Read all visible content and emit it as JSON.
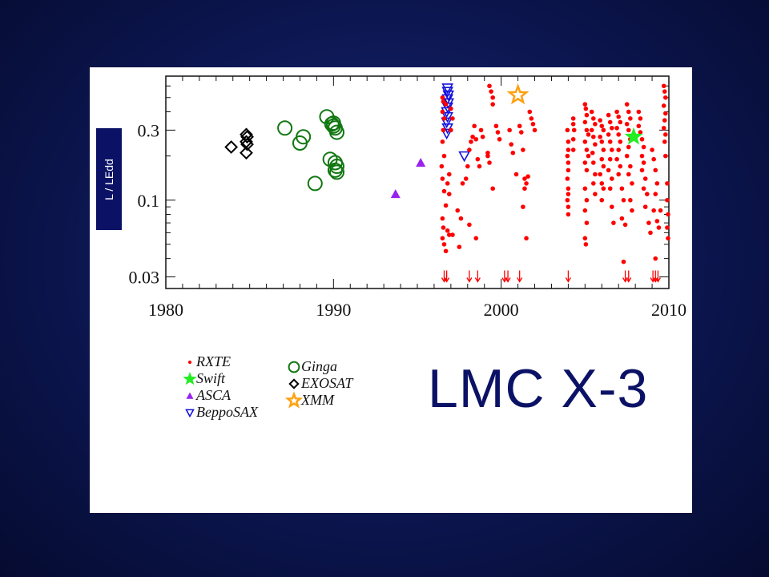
{
  "slide_title": "LMC X-3",
  "colors": {
    "rxte": "#ff0000",
    "swift": "#22ee22",
    "asca": "#9922ee",
    "beppo": "#1111dd",
    "ginga": "#117711",
    "exosat": "#000000",
    "xmm": "#ffa010",
    "navy": "#0b1266"
  },
  "chart_data": {
    "type": "scatter",
    "title": "LMC X-3",
    "xlabel": "",
    "ylabel": "L / LEdd",
    "xlim": [
      1980,
      2010
    ],
    "ylim": [
      0.025,
      0.7
    ],
    "yscale": "log",
    "x_ticks": [
      "1980",
      "1990",
      "2000",
      "2010"
    ],
    "y_ticks": [
      "0.03",
      "0.1",
      "0.3"
    ],
    "legend": [
      "RXTE",
      "Swift",
      "ASCA",
      "BeppoSAX",
      "Ginga",
      "EXOSAT",
      "XMM"
    ],
    "legend_placement": "bottom-left",
    "series": [
      {
        "name": "Ginga",
        "marker": "circle",
        "points": [
          [
            1987.1,
            0.31
          ],
          [
            1988.0,
            0.245
          ],
          [
            1988.2,
            0.27
          ],
          [
            1988.9,
            0.13
          ],
          [
            1989.6,
            0.37
          ],
          [
            1989.9,
            0.33
          ],
          [
            1990.0,
            0.32
          ],
          [
            1990.1,
            0.31
          ],
          [
            1990.2,
            0.29
          ],
          [
            1990.0,
            0.335
          ],
          [
            1989.8,
            0.19
          ],
          [
            1990.1,
            0.18
          ],
          [
            1990.2,
            0.17
          ],
          [
            1990.2,
            0.155
          ],
          [
            1990.1,
            0.16
          ]
        ]
      },
      {
        "name": "EXOSAT",
        "marker": "diamond",
        "points": [
          [
            1983.9,
            0.23
          ],
          [
            1984.8,
            0.28
          ],
          [
            1984.85,
            0.27
          ],
          [
            1984.8,
            0.25
          ],
          [
            1984.85,
            0.24
          ],
          [
            1984.8,
            0.21
          ]
        ]
      },
      {
        "name": "ASCA",
        "marker": "triangle-up",
        "points": [
          [
            1993.7,
            0.11
          ],
          [
            1995.2,
            0.18
          ]
        ]
      },
      {
        "name": "BeppoSAX",
        "marker": "triangle-down",
        "points": [
          [
            1996.8,
            0.58
          ],
          [
            1996.8,
            0.55
          ],
          [
            1996.85,
            0.52
          ],
          [
            1996.8,
            0.49
          ],
          [
            1996.85,
            0.46
          ],
          [
            1996.8,
            0.43
          ],
          [
            1996.75,
            0.4
          ],
          [
            1996.8,
            0.37
          ],
          [
            1996.75,
            0.34
          ],
          [
            1996.8,
            0.31
          ],
          [
            1996.75,
            0.285
          ],
          [
            1997.8,
            0.2
          ]
        ]
      },
      {
        "name": "XMM",
        "marker": "star-open",
        "points": [
          [
            2001.0,
            0.52
          ]
        ]
      },
      {
        "name": "RXTE",
        "marker": "dot",
        "points": [
          [
            1996.5,
            0.5
          ],
          [
            1996.55,
            0.47
          ],
          [
            1996.5,
            0.4
          ],
          [
            1996.6,
            0.36
          ],
          [
            1996.55,
            0.3
          ],
          [
            1996.5,
            0.25
          ],
          [
            1996.6,
            0.2
          ],
          [
            1996.45,
            0.17
          ],
          [
            1996.5,
            0.14
          ],
          [
            1996.6,
            0.115
          ],
          [
            1996.7,
            0.092
          ],
          [
            1996.5,
            0.075
          ],
          [
            1996.55,
            0.065
          ],
          [
            1996.5,
            0.055
          ],
          [
            1996.6,
            0.05
          ],
          [
            1996.7,
            0.045
          ],
          [
            1996.8,
            0.13
          ],
          [
            1996.9,
            0.11
          ],
          [
            1996.7,
            0.45
          ],
          [
            1997.0,
            0.42
          ],
          [
            1997.1,
            0.36
          ],
          [
            1997.0,
            0.3
          ],
          [
            1996.9,
            0.15
          ],
          [
            1996.8,
            0.062
          ],
          [
            1996.9,
            0.058
          ],
          [
            1997.1,
            0.058
          ],
          [
            1997.4,
            0.085
          ],
          [
            1997.6,
            0.075
          ],
          [
            1997.5,
            0.048
          ],
          [
            1997.7,
            0.13
          ],
          [
            1997.9,
            0.14
          ],
          [
            1998.0,
            0.17
          ],
          [
            1998.1,
            0.22
          ],
          [
            1998.2,
            0.25
          ],
          [
            1998.3,
            0.27
          ],
          [
            1998.4,
            0.32
          ],
          [
            1998.5,
            0.26
          ],
          [
            1998.6,
            0.19
          ],
          [
            1998.7,
            0.17
          ],
          [
            1998.1,
            0.068
          ],
          [
            1998.5,
            0.055
          ],
          [
            1998.8,
            0.3
          ],
          [
            1998.9,
            0.27
          ],
          [
            1999.2,
            0.21
          ],
          [
            1999.2,
            0.2
          ],
          [
            1999.3,
            0.18
          ],
          [
            1999.5,
            0.12
          ],
          [
            1999.3,
            0.6
          ],
          [
            1999.4,
            0.55
          ],
          [
            1999.5,
            0.5
          ],
          [
            1999.5,
            0.45
          ],
          [
            1999.7,
            0.32
          ],
          [
            1999.8,
            0.29
          ],
          [
            1999.9,
            0.26
          ],
          [
            2000.5,
            0.3
          ],
          [
            2000.6,
            0.24
          ],
          [
            2000.7,
            0.21
          ],
          [
            2000.9,
            0.15
          ],
          [
            2001.1,
            0.32
          ],
          [
            2001.2,
            0.29
          ],
          [
            2001.3,
            0.22
          ],
          [
            2001.4,
            0.14
          ],
          [
            2001.5,
            0.13
          ],
          [
            2001.6,
            0.145
          ],
          [
            2001.4,
            0.12
          ],
          [
            2001.3,
            0.09
          ],
          [
            2001.5,
            0.055
          ],
          [
            2001.7,
            0.4
          ],
          [
            2001.8,
            0.36
          ],
          [
            2001.9,
            0.33
          ],
          [
            2002.0,
            0.3
          ],
          [
            2003.95,
            0.3
          ],
          [
            2004.0,
            0.25
          ],
          [
            2004.0,
            0.22
          ],
          [
            2003.95,
            0.2
          ],
          [
            2004.0,
            0.18
          ],
          [
            2004.0,
            0.16
          ],
          [
            2003.95,
            0.14
          ],
          [
            2004.0,
            0.12
          ],
          [
            2004.0,
            0.11
          ],
          [
            2003.95,
            0.1
          ],
          [
            2004.0,
            0.09
          ],
          [
            2004.0,
            0.08
          ],
          [
            2004.3,
            0.36
          ],
          [
            2004.3,
            0.33
          ],
          [
            2004.35,
            0.3
          ],
          [
            2004.3,
            0.26
          ],
          [
            2004.3,
            0.22
          ],
          [
            2005.0,
            0.45
          ],
          [
            2005.05,
            0.42
          ],
          [
            2005.1,
            0.38
          ],
          [
            2005.0,
            0.34
          ],
          [
            2005.1,
            0.3
          ],
          [
            2005.2,
            0.28
          ],
          [
            2005.0,
            0.25
          ],
          [
            2005.1,
            0.22
          ],
          [
            2005.2,
            0.2
          ],
          [
            2005.0,
            0.18
          ],
          [
            2005.1,
            0.16
          ],
          [
            2005.0,
            0.12
          ],
          [
            2005.1,
            0.1
          ],
          [
            2005.0,
            0.085
          ],
          [
            2005.1,
            0.07
          ],
          [
            2005.0,
            0.055
          ],
          [
            2005.05,
            0.05
          ],
          [
            2005.4,
            0.4
          ],
          [
            2005.5,
            0.36
          ],
          [
            2005.6,
            0.33
          ],
          [
            2005.4,
            0.3
          ],
          [
            2005.5,
            0.27
          ],
          [
            2005.6,
            0.24
          ],
          [
            2005.45,
            0.21
          ],
          [
            2005.5,
            0.18
          ],
          [
            2005.6,
            0.15
          ],
          [
            2005.5,
            0.13
          ],
          [
            2005.6,
            0.11
          ],
          [
            2005.9,
            0.35
          ],
          [
            2006.0,
            0.32
          ],
          [
            2006.1,
            0.3
          ],
          [
            2005.9,
            0.27
          ],
          [
            2006.0,
            0.25
          ],
          [
            2006.1,
            0.22
          ],
          [
            2006.0,
            0.19
          ],
          [
            2006.1,
            0.17
          ],
          [
            2005.9,
            0.15
          ],
          [
            2006.0,
            0.13
          ],
          [
            2006.1,
            0.12
          ],
          [
            2006.0,
            0.1
          ],
          [
            2006.4,
            0.38
          ],
          [
            2006.5,
            0.34
          ],
          [
            2006.6,
            0.31
          ],
          [
            2006.4,
            0.28
          ],
          [
            2006.5,
            0.25
          ],
          [
            2006.6,
            0.22
          ],
          [
            2006.5,
            0.19
          ],
          [
            2006.4,
            0.16
          ],
          [
            2006.6,
            0.14
          ],
          [
            2006.5,
            0.12
          ],
          [
            2006.6,
            0.09
          ],
          [
            2006.7,
            0.07
          ],
          [
            2006.9,
            0.4
          ],
          [
            2007.0,
            0.37
          ],
          [
            2007.1,
            0.34
          ],
          [
            2006.9,
            0.31
          ],
          [
            2007.0,
            0.28
          ],
          [
            2007.1,
            0.25
          ],
          [
            2007.0,
            0.22
          ],
          [
            2006.9,
            0.19
          ],
          [
            2007.1,
            0.17
          ],
          [
            2007.0,
            0.15
          ],
          [
            2007.2,
            0.12
          ],
          [
            2007.3,
            0.1
          ],
          [
            2007.2,
            0.075
          ],
          [
            2007.4,
            0.068
          ],
          [
            2007.3,
            0.038
          ],
          [
            2007.5,
            0.45
          ],
          [
            2007.6,
            0.4
          ],
          [
            2007.7,
            0.36
          ],
          [
            2007.5,
            0.33
          ],
          [
            2007.6,
            0.3
          ],
          [
            2007.7,
            0.26
          ],
          [
            2007.6,
            0.23
          ],
          [
            2007.5,
            0.2
          ],
          [
            2007.7,
            0.17
          ],
          [
            2007.6,
            0.15
          ],
          [
            2007.8,
            0.13
          ],
          [
            2007.7,
            0.1
          ],
          [
            2007.8,
            0.085
          ],
          [
            2008.2,
            0.4
          ],
          [
            2008.3,
            0.36
          ],
          [
            2008.2,
            0.32
          ],
          [
            2008.3,
            0.29
          ],
          [
            2008.4,
            0.26
          ],
          [
            2008.5,
            0.23
          ],
          [
            2008.4,
            0.2
          ],
          [
            2008.5,
            0.18
          ],
          [
            2008.4,
            0.16
          ],
          [
            2008.6,
            0.14
          ],
          [
            2008.5,
            0.12
          ],
          [
            2008.7,
            0.11
          ],
          [
            2008.6,
            0.09
          ],
          [
            2008.8,
            0.07
          ],
          [
            2008.9,
            0.06
          ],
          [
            2009.0,
            0.22
          ],
          [
            2009.1,
            0.19
          ],
          [
            2009.2,
            0.16
          ],
          [
            2009.3,
            0.13
          ],
          [
            2009.2,
            0.11
          ],
          [
            2009.1,
            0.085
          ],
          [
            2009.3,
            0.072
          ],
          [
            2009.2,
            0.04
          ],
          [
            2009.4,
            0.065
          ],
          [
            2009.5,
            0.085
          ],
          [
            2009.7,
            0.6
          ],
          [
            2009.75,
            0.55
          ],
          [
            2009.8,
            0.5
          ],
          [
            2009.7,
            0.44
          ],
          [
            2009.8,
            0.39
          ],
          [
            2009.75,
            0.35
          ],
          [
            2009.7,
            0.31
          ],
          [
            2009.8,
            0.28
          ],
          [
            2009.75,
            0.25
          ],
          [
            2009.8,
            0.2
          ],
          [
            2009.9,
            0.13
          ],
          [
            2009.9,
            0.1
          ],
          [
            2009.95,
            0.08
          ],
          [
            2009.9,
            0.065
          ],
          [
            2009.95,
            0.055
          ]
        ]
      },
      {
        "name": "RXTE upper limits",
        "marker": "arrow-down",
        "points": [
          [
            1996.6,
            0.03
          ],
          [
            1996.75,
            0.03
          ],
          [
            1998.1,
            0.03
          ],
          [
            1998.6,
            0.03
          ],
          [
            2000.2,
            0.03
          ],
          [
            2000.4,
            0.03
          ],
          [
            2001.1,
            0.03
          ],
          [
            2004.0,
            0.03
          ],
          [
            2007.4,
            0.03
          ],
          [
            2007.6,
            0.03
          ],
          [
            2009.05,
            0.03
          ],
          [
            2009.2,
            0.03
          ],
          [
            2009.35,
            0.03
          ]
        ]
      },
      {
        "name": "Swift",
        "marker": "star",
        "points": [
          [
            2007.9,
            0.27
          ]
        ]
      }
    ]
  }
}
